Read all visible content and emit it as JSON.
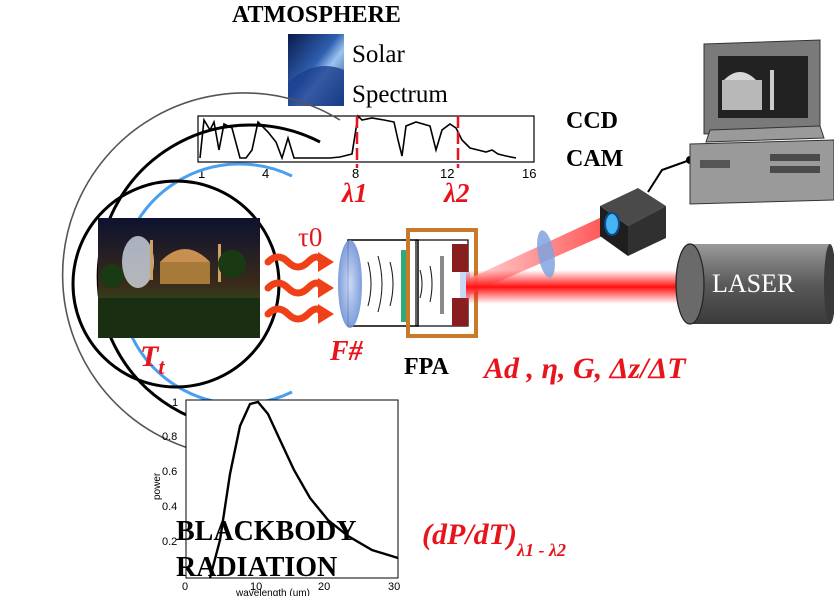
{
  "atmosphere": {
    "title": "ATMOSPHERE",
    "solar_line1": "Solar",
    "solar_line2": "Spectrum",
    "spectrum_ticks": [
      "1",
      "4",
      "8",
      "12",
      "16"
    ],
    "lambda1": "λ1",
    "lambda2": "λ2"
  },
  "target": {
    "label_main": "T",
    "label_sub": "t",
    "tau": "τ0"
  },
  "optics": {
    "f_number": "F#",
    "fpa": "FPA",
    "detector_params": "Ad , η, G, Δz/ΔT"
  },
  "ccd": {
    "line1": "CCD",
    "line2": "CAM"
  },
  "laser": {
    "label": "LASER"
  },
  "blackbody": {
    "title_line1": "BLACKBODY",
    "title_line2": "RADIATION",
    "ylabel": "power",
    "xlabel": "wavelength (um)",
    "yticks": [
      "1",
      "0.8",
      "0.6",
      "0.4",
      "0.2"
    ],
    "xticks": [
      "0",
      "10",
      "20",
      "30"
    ]
  },
  "derivative": {
    "main": "(dP/dT)",
    "sub": "λ1 - λ2"
  },
  "colors": {
    "accent_red": "#e8141c",
    "frame_orange": "#c87a28",
    "lens_blue": "#7fa3e0",
    "monitor_gray": "#8a8a8a"
  }
}
